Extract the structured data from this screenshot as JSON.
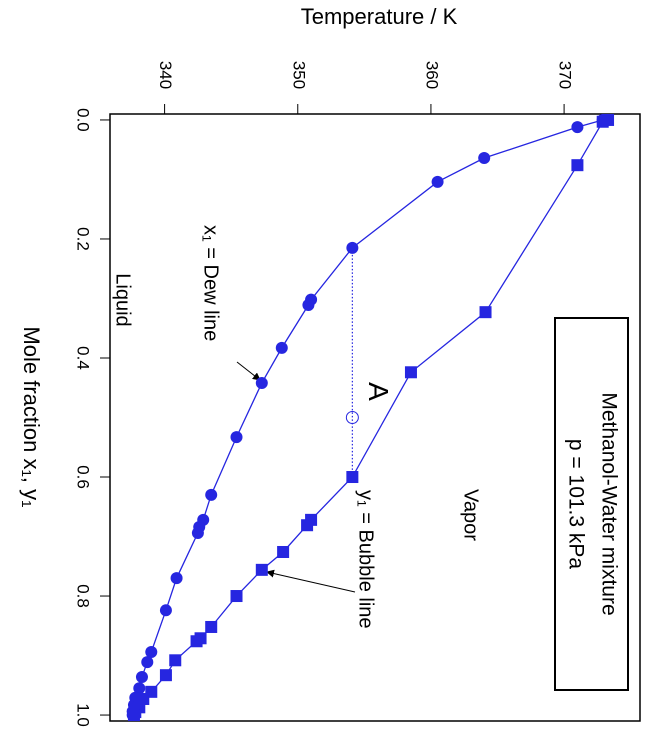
{
  "chart_data": {
    "type": "line",
    "rotated": 90,
    "x_label": "Mole fraction x₁, y₁",
    "y_label": "Temperature / K",
    "xlim": [
      -0.01,
      1.01
    ],
    "ylim": [
      335.9,
      375.7
    ],
    "xticks": [
      {
        "value": 0,
        "label": "0.0"
      },
      {
        "value": 0.2,
        "label": "0.2"
      },
      {
        "value": 0.4,
        "label": "0.4"
      },
      {
        "value": 0.6,
        "label": "0.6"
      },
      {
        "value": 0.8,
        "label": "0.8"
      },
      {
        "value": 1,
        "label": "1.0"
      }
    ],
    "yticks": [
      340,
      350,
      360,
      370
    ],
    "series": [
      {
        "name": "x₁ = Dew line",
        "color": "#2626e0",
        "marker": "circle",
        "x": [
          0,
          0.012,
          0.064,
          0.104,
          0.215,
          0.302,
          0.311,
          0.383,
          0.442,
          0.533,
          0.63,
          0.672,
          0.684,
          0.694,
          0.77,
          0.824,
          0.894,
          0.911,
          0.936,
          0.955,
          0.971,
          0.983,
          0.994,
          1.0
        ],
        "values": [
          372.9,
          371.0,
          364.0,
          360.5,
          354.1,
          351.0,
          350.8,
          348.8,
          347.3,
          345.4,
          343.5,
          342.9,
          342.6,
          342.5,
          340.9,
          340.1,
          339.0,
          338.7,
          338.3,
          338.1,
          337.8,
          337.7,
          337.6,
          337.6
        ]
      },
      {
        "name": "y₁ = Bubble line",
        "color": "#2626e0",
        "marker": "square",
        "x": [
          0,
          0.003,
          0.076,
          0.323,
          0.424,
          0.6,
          0.672,
          0.681,
          0.726,
          0.756,
          0.8,
          0.852,
          0.871,
          0.876,
          0.908,
          0.933,
          0.961,
          0.973,
          0.987,
          0.995,
          1.0
        ],
        "values": [
          373.3,
          372.9,
          371.0,
          364.1,
          358.5,
          354.1,
          351.0,
          350.7,
          348.9,
          347.3,
          345.4,
          343.5,
          342.7,
          342.4,
          340.8,
          340.1,
          339.0,
          338.4,
          338.1,
          337.8,
          337.7
        ]
      }
    ],
    "point_A": {
      "label": "A",
      "x": 0.5,
      "y": 354.1
    },
    "annotations": {
      "liquid": "Liquid",
      "vapor": "Vapor",
      "legend_box": [
        "Methanol-Water mixture",
        "p = 101.3 kPa"
      ]
    }
  }
}
